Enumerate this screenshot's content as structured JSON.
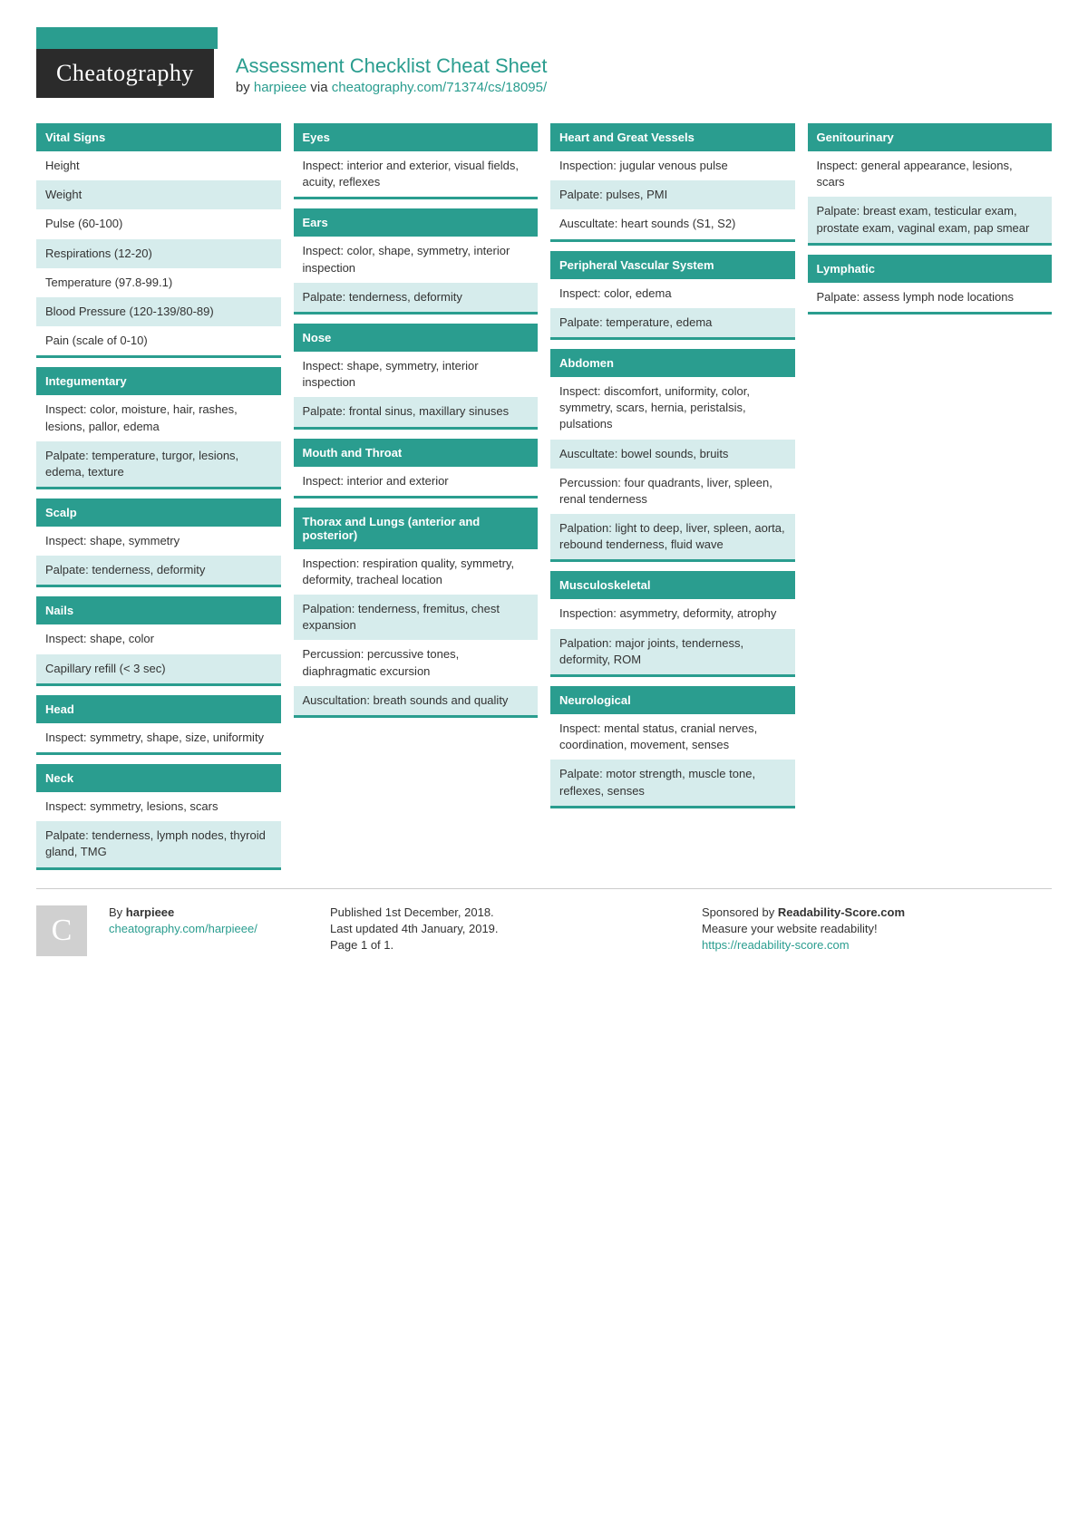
{
  "colors": {
    "accent": "#2a9d8f",
    "logo_bg": "#2b2b2b",
    "alt_row_bg": "#d6ecec",
    "text": "#333333",
    "footer_border": "#cccccc"
  },
  "header": {
    "logo_text": "Cheatography",
    "title": "Assessment Checklist Cheat Sheet",
    "by_prefix": "by ",
    "author": "harpieee",
    "via_text": " via ",
    "url": "cheatography.com/71374/cs/18095/"
  },
  "columns": [
    [
      {
        "title": "Vital Signs",
        "items": [
          "Height",
          "Weight",
          "Pulse (60-100)",
          "Respirations (12-20)",
          "Temperature (97.8-99.1)",
          "Blood Pressure (120-139/80-89)",
          "Pain (scale of 0-10)"
        ]
      },
      {
        "title": "Integumentary",
        "items": [
          "Inspect: color, moisture, hair, rashes, lesions, pallor, edema",
          "Palpate: temperature, turgor, lesions, edema, texture"
        ]
      },
      {
        "title": "Scalp",
        "items": [
          "Inspect: shape, symmetry",
          "Palpate: tenderness, deformity"
        ]
      },
      {
        "title": "Nails",
        "items": [
          "Inspect: shape, color",
          "Capillary refill (< 3 sec)"
        ]
      },
      {
        "title": "Head",
        "items": [
          "Inspect: symmetry, shape, size, uniformity"
        ]
      },
      {
        "title": "Neck",
        "items": [
          "Inspect: symmetry, lesions, scars",
          "Palpate: tenderness, lymph nodes, thyroid gland, TMG"
        ]
      }
    ],
    [
      {
        "title": "Eyes",
        "items": [
          "Inspect: interior and exterior, visual fields, acuity, reflexes"
        ]
      },
      {
        "title": "Ears",
        "items": [
          "Inspect: color, shape, symmetry, interior inspection",
          "Palpate: tenderness, deformity"
        ]
      },
      {
        "title": "Nose",
        "items": [
          "Inspect: shape, symmetry, interior inspection",
          "Palpate: frontal sinus, maxillary sinuses"
        ]
      },
      {
        "title": "Mouth and Throat",
        "items": [
          "Inspect: interior and exterior"
        ]
      },
      {
        "title": "Thorax and Lungs (anterior and posterior)",
        "items": [
          "Inspection: respiration quality, symmetry, deformity, tracheal location",
          "Palpation: tenderness, fremitus, chest expansion",
          "Percussion: percussive tones, diaphragmatic excursion",
          "Auscultation: breath sounds and quality"
        ]
      }
    ],
    [
      {
        "title": "Heart and Great Vessels",
        "items": [
          "Inspection: jugular venous pulse",
          "Palpate: pulses, PMI",
          "Auscultate: heart sounds (S1, S2)"
        ]
      },
      {
        "title": "Peripheral Vascular System",
        "items": [
          "Inspect: color, edema",
          "Palpate: temperature, edema"
        ]
      },
      {
        "title": "Abdomen",
        "items": [
          "Inspect: discomfort, uniformity, color, symmetry, scars, hernia, peristalsis, pulsations",
          "Auscultate: bowel sounds, bruits",
          "Percussion: four quadrants, liver, spleen, renal tenderness",
          "Palpation: light to deep, liver, spleen, aorta, rebound tenderness, fluid wave"
        ]
      },
      {
        "title": "Musculoskeletal",
        "items": [
          "Inspection: asymmetry, deformity, atrophy",
          "Palpation: major joints, tenderness, deformity, ROM"
        ]
      },
      {
        "title": "Neurological",
        "items": [
          "Inspect: mental status, cranial nerves, coordination, movement, senses",
          "Palpate: motor strength, muscle tone, reflexes, senses"
        ]
      }
    ],
    [
      {
        "title": "Genitourinary",
        "items": [
          "Inspect: general appearance, lesions, scars",
          "Palpate: breast exam, testicular exam, prostate exam, vaginal exam, pap smear"
        ]
      },
      {
        "title": "Lymphatic",
        "items": [
          "Palpate: assess lymph node locations"
        ]
      }
    ]
  ],
  "footer": {
    "avatar_letter": "C",
    "by_label": "By ",
    "author": "harpieee",
    "author_url": "cheatography.com/harpieee/",
    "published": "Published 1st December, 2018.",
    "updated": "Last updated 4th January, 2019.",
    "page": "Page 1 of 1.",
    "sponsor_prefix": "Sponsored by ",
    "sponsor_name": "Readability-Score.com",
    "sponsor_tag": "Measure your website readability!",
    "sponsor_url": "https://readability-score.com"
  }
}
